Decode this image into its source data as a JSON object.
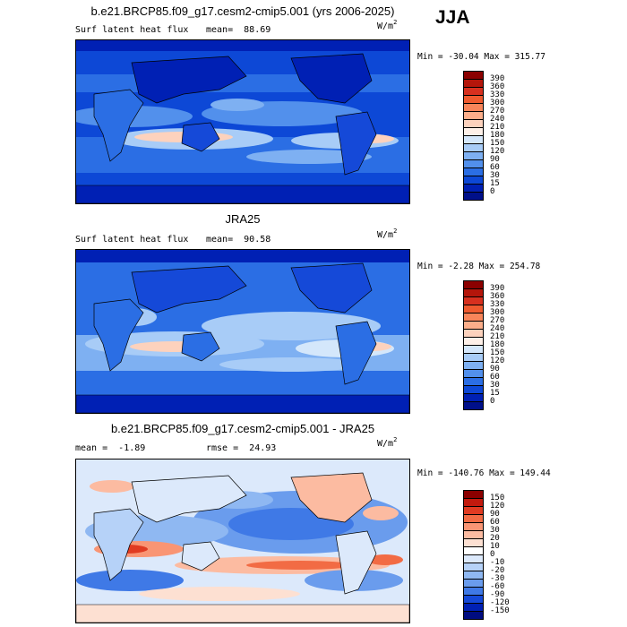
{
  "season": "JJA",
  "units_base": "W/m",
  "units_exp": "2",
  "panels": [
    {
      "title": "b.e21.BRCP85.f09_g17.cesm2-cmip5.001 (yrs 2006-2025)",
      "variable": "Surf latent heat flux",
      "mean_label": "mean=",
      "mean_value": "88.69",
      "minmax": "Min = -30.04 Max = 315.77",
      "colorbar": {
        "labels": [
          "390",
          "360",
          "330",
          "300",
          "270",
          "240",
          "210",
          "180",
          "150",
          "120",
          "90",
          "60",
          "30",
          "15",
          "0"
        ],
        "colors": [
          "#8b0000",
          "#b4160b",
          "#d7301f",
          "#ef5a2f",
          "#f8855a",
          "#fcae8a",
          "#fdd2bd",
          "#fef0e8",
          "#d4e7fb",
          "#a8ccf7",
          "#7eb0f2",
          "#5290ec",
          "#2b6ee4",
          "#0d48d6",
          "#0020b4",
          "#00108a"
        ]
      }
    },
    {
      "title": "JRA25",
      "variable": "Surf latent heat flux",
      "mean_label": "mean=",
      "mean_value": "90.58",
      "minmax": "Min = -2.28 Max = 254.78",
      "colorbar": {
        "labels": [
          "390",
          "360",
          "330",
          "300",
          "270",
          "240",
          "210",
          "180",
          "150",
          "120",
          "90",
          "60",
          "30",
          "15",
          "0"
        ],
        "colors": [
          "#8b0000",
          "#b4160b",
          "#d7301f",
          "#ef5a2f",
          "#f8855a",
          "#fcae8a",
          "#fdd2bd",
          "#fef0e8",
          "#d4e7fb",
          "#a8ccf7",
          "#7eb0f2",
          "#5290ec",
          "#2b6ee4",
          "#0d48d6",
          "#0020b4",
          "#00108a"
        ]
      }
    },
    {
      "title": "b.e21.BRCP85.f09_g17.cesm2-cmip5.001 - JRA25",
      "mean_label": "mean =",
      "mean_value": "-1.89",
      "rmse_label": "rmse =",
      "rmse_value": "24.93",
      "minmax": "Min = -140.76 Max = 149.44",
      "colorbar": {
        "labels": [
          "150",
          "120",
          "90",
          "60",
          "30",
          "20",
          "10",
          "0",
          "-10",
          "-20",
          "-30",
          "-60",
          "-90",
          "-120",
          "-150"
        ],
        "colors": [
          "#8b0000",
          "#c21a0e",
          "#e03b22",
          "#f26b44",
          "#f99574",
          "#fcbba1",
          "#fde0d2",
          "#ffffff",
          "#dce9fb",
          "#b6d2f8",
          "#8fb8f2",
          "#6a9ced",
          "#3f79e6",
          "#1549d8",
          "#0020b4",
          "#000c80"
        ]
      }
    }
  ]
}
